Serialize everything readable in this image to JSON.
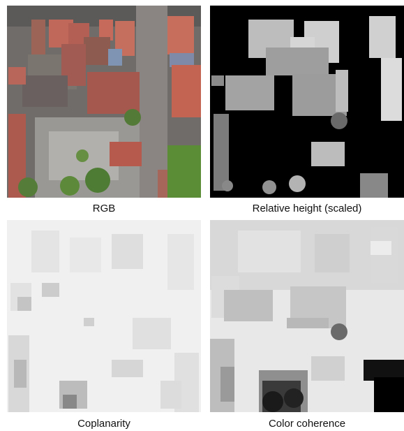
{
  "panels": [
    {
      "label": "RGB"
    },
    {
      "label": "Relative height (scaled)"
    },
    {
      "label": "Coplanarity"
    },
    {
      "label": "Color coherence"
    }
  ]
}
